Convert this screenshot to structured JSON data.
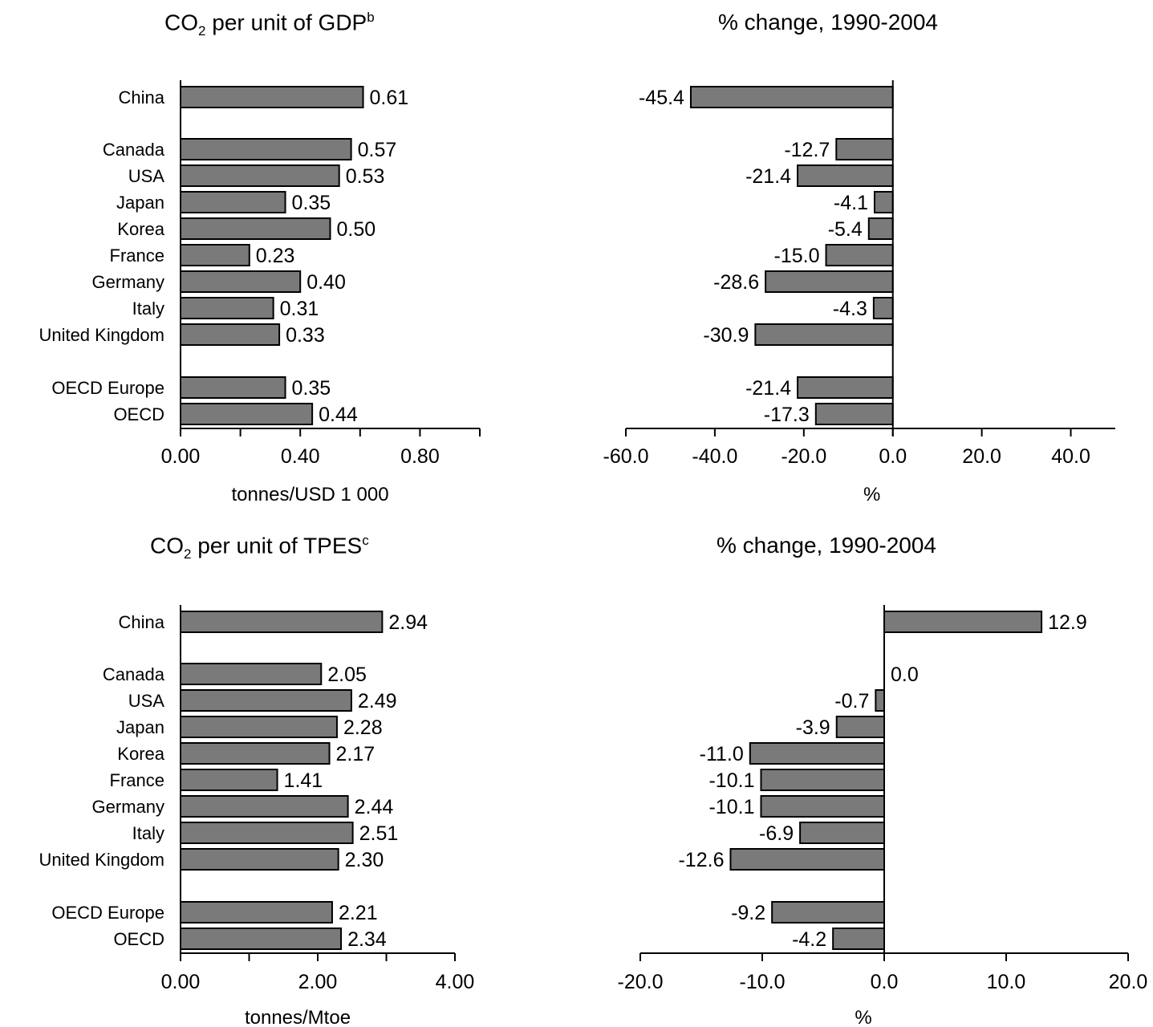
{
  "chart_data": [
    {
      "type": "bar",
      "orientation": "horizontal",
      "title": {
        "prefix": "CO",
        "sub": "2",
        "text": " per unit of  GDP",
        "sup": "b"
      },
      "categories": [
        "China",
        "Canada",
        "USA",
        "Japan",
        "Korea",
        "France",
        "Germany",
        "Italy",
        "United Kingdom",
        "OECD Europe",
        "OECD"
      ],
      "values": [
        0.61,
        0.57,
        0.53,
        0.35,
        0.5,
        0.23,
        0.4,
        0.31,
        0.33,
        0.35,
        0.44
      ],
      "value_labels": [
        "0.61",
        "0.57",
        "0.53",
        "0.35",
        "0.50",
        "0.23",
        "0.40",
        "0.31",
        "0.33",
        "0.35",
        "0.44"
      ],
      "xlim": [
        0,
        1.0
      ],
      "xticks": [
        0,
        0.2,
        0.4,
        0.6,
        0.8,
        1.0
      ],
      "xtick_labels": [
        "0.00",
        "",
        "0.40",
        "",
        "0.80",
        ""
      ],
      "xlabel": "tonnes/USD 1 000",
      "ylabel": "",
      "bar_color": "#7a7a7a"
    },
    {
      "type": "bar",
      "orientation": "horizontal",
      "title": {
        "text": "% change, 1990-2004"
      },
      "categories": [
        "China",
        "Canada",
        "USA",
        "Japan",
        "Korea",
        "France",
        "Germany",
        "Italy",
        "United Kingdom",
        "OECD Europe",
        "OECD"
      ],
      "values": [
        -45.4,
        -12.7,
        -21.4,
        -4.1,
        -5.4,
        -15.0,
        -28.6,
        -4.3,
        -30.9,
        -21.4,
        -17.3
      ],
      "value_labels": [
        "-45.4",
        "-12.7",
        "-21.4",
        "-4.1",
        "-5.4",
        "-15.0",
        "-28.6",
        "-4.3",
        "-30.9",
        "-21.4",
        "-17.3"
      ],
      "xlim": [
        -60,
        50
      ],
      "xticks": [
        -60,
        -40,
        -20,
        0,
        20,
        40
      ],
      "xtick_labels": [
        "-60.0",
        "-40.0",
        "-20.0",
        "0.0",
        "20.0",
        "40.0"
      ],
      "xlabel": "%",
      "ylabel": "",
      "bar_color": "#7a7a7a"
    },
    {
      "type": "bar",
      "orientation": "horizontal",
      "title": {
        "prefix": "CO",
        "sub": "2",
        "text": " per unit of TPES",
        "sup": "c"
      },
      "categories": [
        "China",
        "Canada",
        "USA",
        "Japan",
        "Korea",
        "France",
        "Germany",
        "Italy",
        "United Kingdom",
        "OECD Europe",
        "OECD"
      ],
      "values": [
        2.94,
        2.05,
        2.49,
        2.28,
        2.17,
        1.41,
        2.44,
        2.51,
        2.3,
        2.21,
        2.34
      ],
      "value_labels": [
        "2.94",
        "2.05",
        "2.49",
        "2.28",
        "2.17",
        "1.41",
        "2.44",
        "2.51",
        "2.30",
        "2.21",
        "2.34"
      ],
      "xlim": [
        0,
        4.0
      ],
      "xticks": [
        0,
        1,
        2,
        3,
        4
      ],
      "xtick_labels": [
        "0.00",
        "",
        "2.00",
        "",
        "4.00"
      ],
      "xlabel": "tonnes/Mtoe",
      "ylabel": "",
      "bar_color": "#7a7a7a"
    },
    {
      "type": "bar",
      "orientation": "horizontal",
      "title": {
        "text": "% change, 1990-2004"
      },
      "categories": [
        "China",
        "Canada",
        "USA",
        "Japan",
        "Korea",
        "France",
        "Germany",
        "Italy",
        "United Kingdom",
        "OECD Europe",
        "OECD"
      ],
      "values": [
        12.9,
        0.0,
        -0.7,
        -3.9,
        -11.0,
        -10.1,
        -10.1,
        -6.9,
        -12.6,
        -9.2,
        -4.2
      ],
      "value_labels": [
        "12.9",
        "0.0",
        "-0.7",
        "-3.9",
        "-11.0",
        "-10.1",
        "-10.1",
        "-6.9",
        "-12.6",
        "-9.2",
        "-4.2"
      ],
      "xlim": [
        -20,
        20
      ],
      "xticks": [
        -20,
        -10,
        0,
        10,
        20
      ],
      "xtick_labels": [
        "-20.0",
        "-10.0",
        "0.0",
        "10.0",
        "20.0"
      ],
      "xlabel": "%",
      "ylabel": "",
      "bar_color": "#7a7a7a"
    }
  ]
}
